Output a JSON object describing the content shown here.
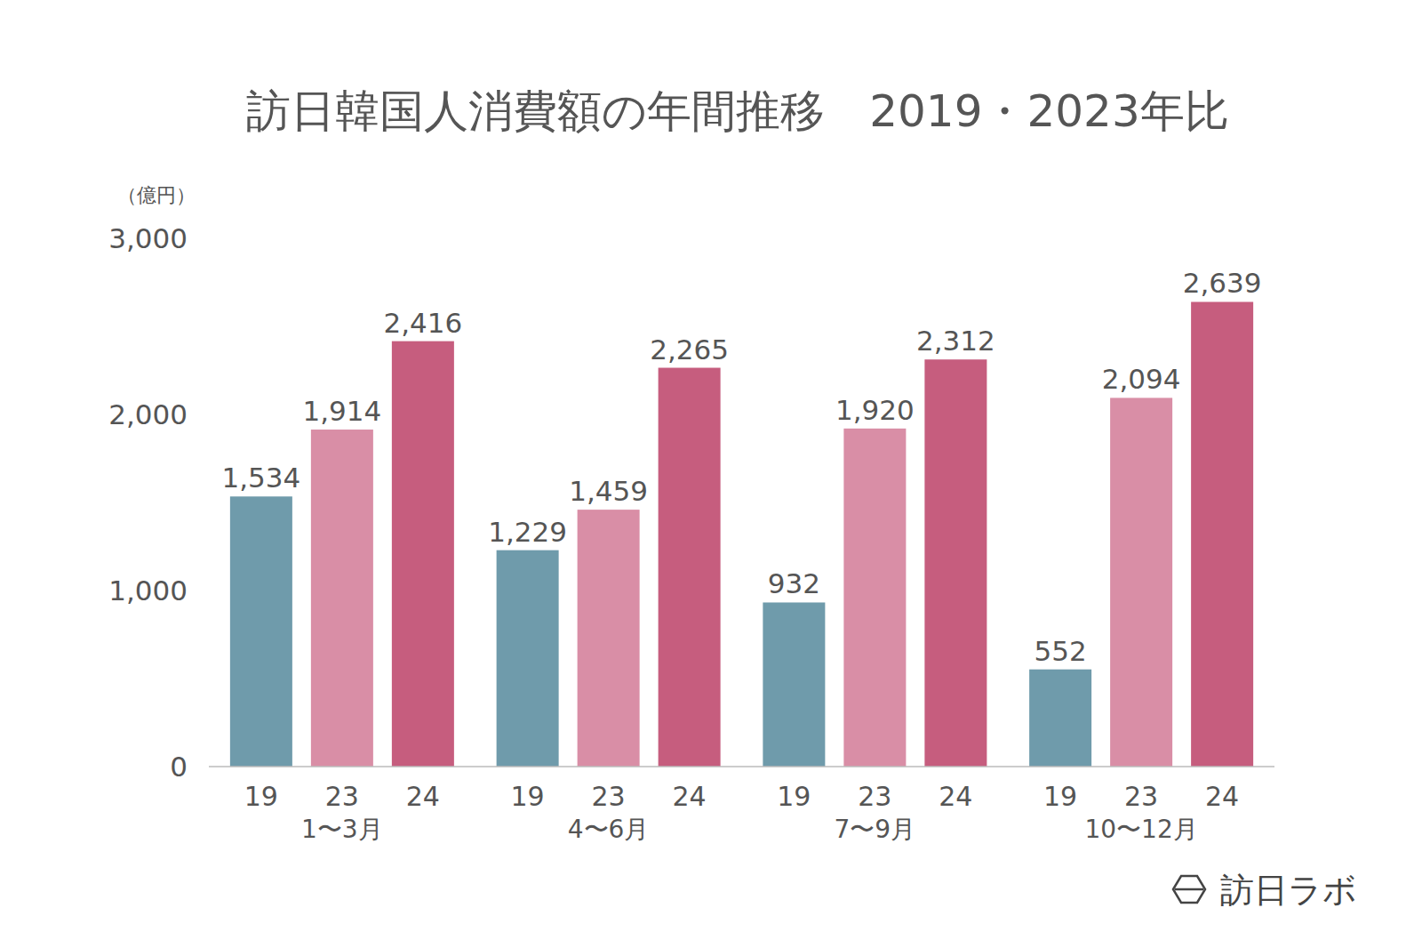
{
  "chart_data": {
    "type": "bar",
    "title": "訪日韓国人消費額の年間推移　2019・2023年比",
    "ylabel": "（億円）",
    "watermark": "訪日ラボ",
    "categories": [
      "1〜3月",
      "4〜6月",
      "7〜9月",
      "10〜12月"
    ],
    "series": [
      {
        "name": "19",
        "color": "#6f9bab",
        "values": [
          1534,
          1229,
          932,
          552
        ],
        "value_labels": [
          "1,534",
          "1,229",
          "932",
          "552"
        ]
      },
      {
        "name": "23",
        "color": "#d98ea6",
        "values": [
          1914,
          1459,
          1920,
          2094
        ],
        "value_labels": [
          "1,914",
          "1,459",
          "1,920",
          "2,094"
        ]
      },
      {
        "name": "24",
        "color": "#c65d7e",
        "values": [
          2416,
          2265,
          2312,
          2639
        ],
        "value_labels": [
          "2,416",
          "2,265",
          "2,312",
          "2,639"
        ]
      }
    ],
    "ylim": [
      0,
      3000
    ],
    "yticks": [
      0,
      {
        "value": 1000,
        "label": "1,000"
      },
      {
        "value": 2000,
        "label": "2,000"
      },
      {
        "value": 3000,
        "label": "3,000"
      }
    ],
    "grid": false,
    "data_labels": true
  }
}
